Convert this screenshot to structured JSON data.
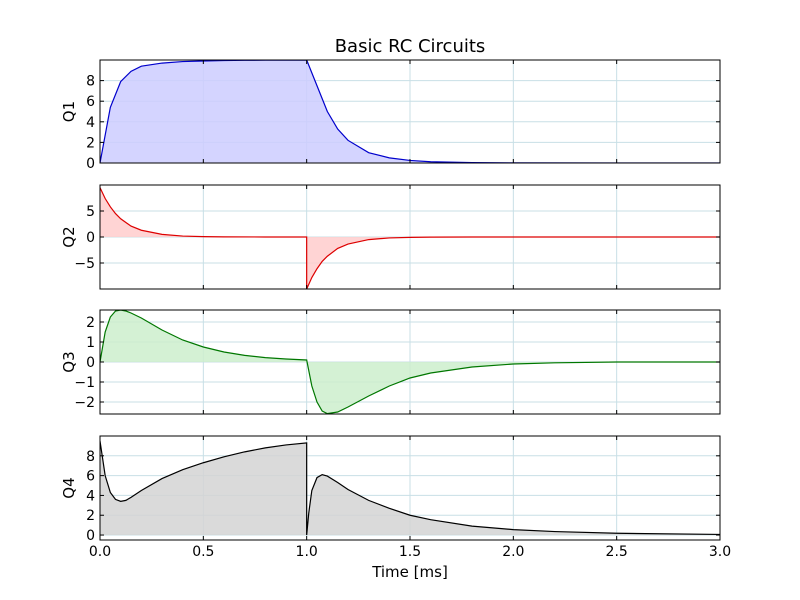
{
  "chart_data": {
    "type": "area",
    "title": "Basic RC Circuits",
    "xlabel": "Time [ms]",
    "xlim": [
      0,
      3
    ],
    "xticks": [
      "0.0",
      "0.5",
      "1.0",
      "1.5",
      "2.0",
      "2.5",
      "3.0"
    ],
    "grid": true,
    "panels": [
      {
        "ylabel": "Q1",
        "ylim": [
          0,
          10
        ],
        "yticks": [
          "0",
          "2",
          "4",
          "6",
          "8"
        ],
        "color": "#0000cc",
        "fill": "#ccccff",
        "series": {
          "x": [
            0,
            0.05,
            0.1,
            0.15,
            0.2,
            0.3,
            0.4,
            0.5,
            0.6,
            0.7,
            0.8,
            0.9,
            1.0,
            1.0,
            1.05,
            1.1,
            1.15,
            1.2,
            1.3,
            1.4,
            1.5,
            1.6,
            1.8,
            2.0,
            2.5,
            3.0
          ],
          "y": [
            0,
            5.4,
            7.9,
            8.9,
            9.4,
            9.7,
            9.85,
            9.9,
            9.95,
            9.97,
            9.98,
            9.99,
            10,
            10,
            7.5,
            5.0,
            3.3,
            2.2,
            1.0,
            0.5,
            0.25,
            0.12,
            0.04,
            0.01,
            0,
            0
          ]
        }
      },
      {
        "ylabel": "Q2",
        "ylim": [
          -10,
          10
        ],
        "yticks": [
          "5",
          "0",
          "−5"
        ],
        "color": "#dd0000",
        "fill": "#ffcccc",
        "series": {
          "x": [
            0,
            0.025,
            0.05,
            0.075,
            0.1,
            0.15,
            0.2,
            0.3,
            0.4,
            0.5,
            0.6,
            0.8,
            1.0,
            1.0,
            1.025,
            1.05,
            1.075,
            1.1,
            1.15,
            1.2,
            1.3,
            1.4,
            1.5,
            1.6,
            1.8,
            2.0,
            2.5,
            3.0
          ],
          "y": [
            9.5,
            7.4,
            5.8,
            4.5,
            3.5,
            2.1,
            1.3,
            0.5,
            0.18,
            0.07,
            0.03,
            0,
            0,
            -10,
            -7.8,
            -6.1,
            -4.7,
            -3.7,
            -2.2,
            -1.35,
            -0.5,
            -0.18,
            -0.07,
            -0.03,
            0,
            0,
            0,
            0
          ]
        }
      },
      {
        "ylabel": "Q3",
        "ylim": [
          -2.6,
          2.6
        ],
        "yticks": [
          "2",
          "1",
          "0",
          "−1",
          "−2"
        ],
        "color": "#007700",
        "fill": "#cceecc",
        "series": {
          "x": [
            0,
            0.025,
            0.05,
            0.075,
            0.1,
            0.125,
            0.15,
            0.2,
            0.3,
            0.4,
            0.5,
            0.6,
            0.7,
            0.8,
            0.9,
            1.0,
            1.0,
            1.025,
            1.05,
            1.075,
            1.1,
            1.15,
            1.2,
            1.3,
            1.4,
            1.5,
            1.6,
            1.8,
            2.0,
            2.2,
            2.5,
            3.0
          ],
          "y": [
            0,
            1.5,
            2.25,
            2.55,
            2.6,
            2.55,
            2.45,
            2.2,
            1.6,
            1.1,
            0.75,
            0.5,
            0.33,
            0.22,
            0.15,
            0.1,
            0.1,
            -1.2,
            -2.0,
            -2.45,
            -2.58,
            -2.5,
            -2.25,
            -1.7,
            -1.2,
            -0.8,
            -0.55,
            -0.25,
            -0.1,
            -0.04,
            0,
            0
          ]
        }
      },
      {
        "ylabel": "Q4",
        "ylim": [
          -0.5,
          10
        ],
        "yticks": [
          "8",
          "6",
          "4",
          "2",
          "0"
        ],
        "color": "#000000",
        "fill": "#d4d4d4",
        "series": {
          "x": [
            0,
            0.025,
            0.05,
            0.075,
            0.1,
            0.125,
            0.15,
            0.2,
            0.3,
            0.4,
            0.5,
            0.6,
            0.7,
            0.8,
            0.9,
            1.0,
            1.0,
            1.01,
            1.025,
            1.05,
            1.075,
            1.1,
            1.15,
            1.2,
            1.3,
            1.4,
            1.5,
            1.6,
            1.8,
            2.0,
            2.2,
            2.5,
            3.0
          ],
          "y": [
            9.5,
            6.0,
            4.3,
            3.6,
            3.4,
            3.5,
            3.8,
            4.5,
            5.7,
            6.6,
            7.3,
            7.9,
            8.4,
            8.8,
            9.1,
            9.3,
            0,
            2.2,
            4.5,
            5.8,
            6.1,
            5.95,
            5.3,
            4.6,
            3.5,
            2.7,
            2.0,
            1.55,
            0.9,
            0.55,
            0.35,
            0.18,
            0.06
          ]
        }
      }
    ]
  }
}
